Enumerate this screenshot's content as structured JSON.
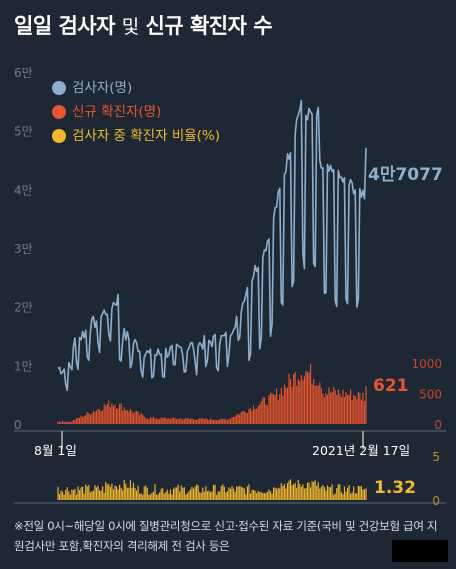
{
  "title": {
    "part1": "일일 검사자",
    "mid": "및",
    "part2": "신규 확진자 수"
  },
  "legend": {
    "tests": "검사자(명)",
    "cases": "신규 확진자(명)",
    "ratio": "검사자 중 확진자 비율(%)"
  },
  "colors": {
    "tests": "#8eaece",
    "cases": "#e8542c",
    "ratio": "#f2b929",
    "background": "#1e2835"
  },
  "end_values": {
    "tests": "4만7077",
    "cases": "621",
    "ratio": "1.32"
  },
  "x_labels": {
    "start": "8월 1일",
    "end": "2021년 2월 17일"
  },
  "footnote": "※전일 0시~해당일 0시에 질병관리청으로 신고·접수된 자료 기준(국비 및 건강보험 급여 지원검사만 포함,확진자의 격리해제 전 검사 등은",
  "chart_data": [
    {
      "type": "line",
      "name": "검사자(명)",
      "x_range": [
        "2020-08-01",
        "2021-02-17"
      ],
      "ylim": [
        0,
        60000
      ],
      "y_ticks": [
        "0",
        "1만",
        "2만",
        "3만",
        "4만",
        "5만",
        "6만"
      ],
      "last_value": 47077
    },
    {
      "type": "bar",
      "name": "신규 확진자(명)",
      "ylim": [
        0,
        1000
      ],
      "y_ticks": [
        "0",
        "500",
        "1000"
      ],
      "last_value": 621
    },
    {
      "type": "bar",
      "name": "검사자 중 확진자 비율(%)",
      "ylim": [
        0,
        5
      ],
      "y_ticks": [
        "0",
        "5"
      ],
      "last_value": 1.32
    }
  ]
}
